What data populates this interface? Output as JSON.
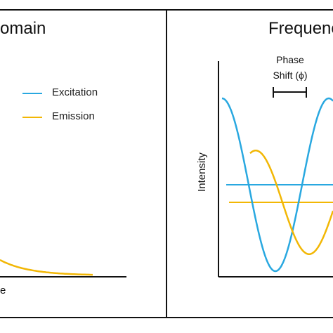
{
  "left_panel": {
    "title_fragment": "omain",
    "legend": [
      {
        "label": "Excitation",
        "color": "#29a8e0"
      },
      {
        "label": "Emission",
        "color": "#f2b705"
      }
    ],
    "x_label_fragment": "e",
    "decay_curve": {
      "series": "Emission",
      "color": "#f2b705"
    }
  },
  "right_panel": {
    "title_fragment": "Frequenc",
    "annotation_line1": "Phase",
    "annotation_line2": "Shift (ϕ)",
    "y_label": "Intensity",
    "x_label_fragment": "",
    "series": [
      {
        "name": "Excitation",
        "color": "#29a8e0",
        "amplitude": 1.0,
        "mean_level": 0.45,
        "phase_shift": 0.0
      },
      {
        "name": "Emission",
        "color": "#f2b705",
        "amplitude": 0.6,
        "mean_level": 0.37,
        "phase_shift": 0.75
      }
    ]
  },
  "colors": {
    "axis": "#111111",
    "divider": "#111111",
    "excitation": "#29a8e0",
    "emission": "#f2b705"
  }
}
